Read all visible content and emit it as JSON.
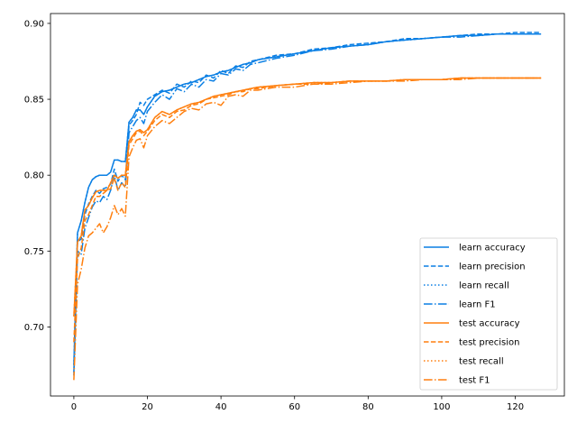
{
  "chart_data": {
    "type": "line",
    "title": "",
    "xlabel": "",
    "ylabel": "",
    "xlim": [
      -6.35,
      133.35
    ],
    "ylim": [
      0.6545,
      0.9065
    ],
    "xticks": [
      0,
      20,
      40,
      60,
      80,
      100,
      120
    ],
    "xtick_labels": [
      "0",
      "20",
      "40",
      "60",
      "80",
      "100",
      "120"
    ],
    "yticks": [
      0.7,
      0.75,
      0.8,
      0.85,
      0.9
    ],
    "ytick_labels": [
      "0.70",
      "0.75",
      "0.80",
      "0.85",
      "0.90"
    ],
    "grid": false,
    "legend_position": "lower right",
    "x": [
      0,
      1,
      2,
      3,
      4,
      5,
      6,
      7,
      8,
      9,
      10,
      11,
      12,
      13,
      14,
      15,
      16,
      17,
      18,
      19,
      20,
      22,
      24,
      26,
      28,
      30,
      32,
      34,
      36,
      38,
      40,
      42,
      44,
      46,
      48,
      50,
      55,
      60,
      65,
      70,
      75,
      80,
      85,
      90,
      95,
      100,
      105,
      110,
      115,
      120,
      127
    ],
    "series": [
      {
        "name": "learn accuracy",
        "color": "#0a7fe4",
        "dash": "solid",
        "values": [
          0.675,
          0.762,
          0.77,
          0.782,
          0.792,
          0.797,
          0.799,
          0.8,
          0.8,
          0.8,
          0.802,
          0.81,
          0.81,
          0.809,
          0.809,
          0.835,
          0.838,
          0.843,
          0.843,
          0.84,
          0.845,
          0.852,
          0.855,
          0.856,
          0.858,
          0.86,
          0.861,
          0.863,
          0.865,
          0.866,
          0.868,
          0.869,
          0.871,
          0.873,
          0.874,
          0.876,
          0.878,
          0.88,
          0.882,
          0.884,
          0.885,
          0.886,
          0.888,
          0.889,
          0.89,
          0.891,
          0.892,
          0.892,
          0.893,
          0.893,
          0.893
        ]
      },
      {
        "name": "learn precision",
        "color": "#0a7fe4",
        "dash": "dashed",
        "values": [
          0.668,
          0.756,
          0.758,
          0.774,
          0.781,
          0.786,
          0.79,
          0.788,
          0.791,
          0.792,
          0.794,
          0.804,
          0.796,
          0.8,
          0.797,
          0.833,
          0.836,
          0.84,
          0.848,
          0.846,
          0.85,
          0.853,
          0.856,
          0.854,
          0.86,
          0.858,
          0.862,
          0.861,
          0.866,
          0.864,
          0.869,
          0.867,
          0.872,
          0.871,
          0.875,
          0.876,
          0.879,
          0.88,
          0.883,
          0.884,
          0.886,
          0.887,
          0.888,
          0.89,
          0.89,
          0.891,
          0.892,
          0.893,
          0.893,
          0.894,
          0.894
        ]
      },
      {
        "name": "learn recall",
        "color": "#0a7fe4",
        "dash": "dotted",
        "values": [
          0.675,
          0.762,
          0.77,
          0.782,
          0.792,
          0.797,
          0.799,
          0.8,
          0.8,
          0.8,
          0.802,
          0.81,
          0.81,
          0.809,
          0.809,
          0.835,
          0.838,
          0.843,
          0.843,
          0.84,
          0.845,
          0.852,
          0.855,
          0.856,
          0.858,
          0.86,
          0.861,
          0.863,
          0.865,
          0.866,
          0.868,
          0.869,
          0.871,
          0.873,
          0.874,
          0.876,
          0.878,
          0.88,
          0.882,
          0.884,
          0.885,
          0.886,
          0.888,
          0.889,
          0.89,
          0.891,
          0.892,
          0.892,
          0.893,
          0.893,
          0.893
        ]
      },
      {
        "name": "learn F1",
        "color": "#0a7fe4",
        "dash": "dashdot",
        "values": [
          0.67,
          0.75,
          0.748,
          0.765,
          0.772,
          0.779,
          0.783,
          0.782,
          0.786,
          0.784,
          0.79,
          0.8,
          0.79,
          0.795,
          0.792,
          0.828,
          0.832,
          0.836,
          0.838,
          0.834,
          0.842,
          0.848,
          0.853,
          0.85,
          0.857,
          0.855,
          0.86,
          0.858,
          0.863,
          0.862,
          0.867,
          0.866,
          0.87,
          0.869,
          0.873,
          0.874,
          0.877,
          0.879,
          0.882,
          0.883,
          0.885,
          0.886,
          0.888,
          0.889,
          0.89,
          0.891,
          0.891,
          0.892,
          0.893,
          0.893,
          0.893
        ]
      },
      {
        "name": "test accuracy",
        "color": "#ff7f0e",
        "dash": "solid",
        "values": [
          0.707,
          0.756,
          0.76,
          0.777,
          0.78,
          0.785,
          0.789,
          0.79,
          0.79,
          0.79,
          0.795,
          0.8,
          0.798,
          0.8,
          0.8,
          0.822,
          0.826,
          0.829,
          0.83,
          0.828,
          0.83,
          0.838,
          0.842,
          0.84,
          0.843,
          0.845,
          0.847,
          0.848,
          0.85,
          0.852,
          0.853,
          0.854,
          0.855,
          0.856,
          0.857,
          0.858,
          0.859,
          0.86,
          0.861,
          0.861,
          0.862,
          0.862,
          0.862,
          0.863,
          0.863,
          0.863,
          0.864,
          0.864,
          0.864,
          0.864,
          0.864
        ]
      },
      {
        "name": "test precision",
        "color": "#ff7f0e",
        "dash": "dashed",
        "values": [
          0.69,
          0.745,
          0.752,
          0.77,
          0.774,
          0.78,
          0.786,
          0.786,
          0.788,
          0.79,
          0.791,
          0.798,
          0.79,
          0.795,
          0.792,
          0.82,
          0.824,
          0.828,
          0.829,
          0.826,
          0.829,
          0.836,
          0.84,
          0.838,
          0.842,
          0.843,
          0.846,
          0.847,
          0.85,
          0.851,
          0.852,
          0.853,
          0.855,
          0.855,
          0.857,
          0.857,
          0.859,
          0.86,
          0.86,
          0.861,
          0.862,
          0.862,
          0.862,
          0.863,
          0.863,
          0.863,
          0.864,
          0.864,
          0.864,
          0.864,
          0.864
        ]
      },
      {
        "name": "test recall",
        "color": "#ff7f0e",
        "dash": "dotted",
        "values": [
          0.707,
          0.756,
          0.76,
          0.777,
          0.78,
          0.785,
          0.789,
          0.79,
          0.79,
          0.79,
          0.795,
          0.8,
          0.798,
          0.8,
          0.8,
          0.822,
          0.826,
          0.829,
          0.83,
          0.828,
          0.83,
          0.838,
          0.842,
          0.84,
          0.843,
          0.845,
          0.847,
          0.848,
          0.85,
          0.852,
          0.853,
          0.854,
          0.855,
          0.856,
          0.857,
          0.858,
          0.859,
          0.86,
          0.861,
          0.861,
          0.862,
          0.862,
          0.862,
          0.863,
          0.863,
          0.863,
          0.864,
          0.864,
          0.864,
          0.864,
          0.864
        ]
      },
      {
        "name": "test F1",
        "color": "#ff7f0e",
        "dash": "dashdot",
        "values": [
          0.665,
          0.728,
          0.738,
          0.752,
          0.76,
          0.762,
          0.765,
          0.768,
          0.762,
          0.766,
          0.772,
          0.78,
          0.774,
          0.778,
          0.773,
          0.812,
          0.818,
          0.823,
          0.824,
          0.818,
          0.826,
          0.832,
          0.836,
          0.834,
          0.838,
          0.842,
          0.844,
          0.843,
          0.847,
          0.848,
          0.846,
          0.852,
          0.853,
          0.852,
          0.856,
          0.856,
          0.858,
          0.858,
          0.86,
          0.86,
          0.861,
          0.862,
          0.862,
          0.862,
          0.863,
          0.863,
          0.863,
          0.864,
          0.864,
          0.864,
          0.864
        ]
      }
    ]
  }
}
